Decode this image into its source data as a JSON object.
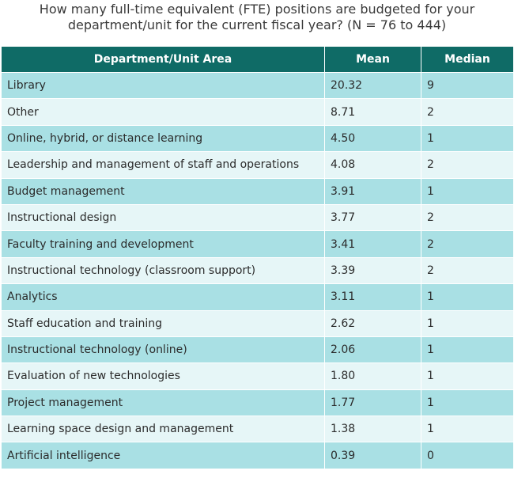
{
  "chart_data": {
    "type": "table",
    "title_lines": [
      "How many full-time equivalent (FTE) positions are budgeted for your",
      "department/unit for the current fiscal year? (N = 76 to 444)"
    ],
    "columns": [
      "Department/Unit Area",
      "Mean",
      "Median"
    ],
    "rows": [
      {
        "area": "Library",
        "mean": "20.32",
        "median": "9"
      },
      {
        "area": "Other",
        "mean": "8.71",
        "median": "2"
      },
      {
        "area": "Online, hybrid, or distance learning",
        "mean": "4.50",
        "median": "1"
      },
      {
        "area": "Leadership and management of staff and operations",
        "mean": "4.08",
        "median": "2"
      },
      {
        "area": "Budget management",
        "mean": "3.91",
        "median": "1"
      },
      {
        "area": "Instructional design",
        "mean": "3.77",
        "median": "2"
      },
      {
        "area": "Faculty training and development",
        "mean": "3.41",
        "median": "2"
      },
      {
        "area": "Instructional technology (classroom support)",
        "mean": "3.39",
        "median": "2"
      },
      {
        "area": "Analytics",
        "mean": "3.11",
        "median": "1"
      },
      {
        "area": "Staff education and training",
        "mean": "2.62",
        "median": "1"
      },
      {
        "area": "Instructional technology (online)",
        "mean": "2.06",
        "median": "1"
      },
      {
        "area": "Evaluation of new technologies",
        "mean": "1.80",
        "median": "1"
      },
      {
        "area": "Project management",
        "mean": "1.77",
        "median": "1"
      },
      {
        "area": "Learning space design and management",
        "mean": "1.38",
        "median": "1"
      },
      {
        "area": "Artificial intelligence",
        "mean": "0.39",
        "median": "0"
      }
    ],
    "colors": {
      "header_bg": "#0f6b66",
      "row_odd": "#a9e0e4",
      "row_even": "#e6f6f7"
    }
  }
}
